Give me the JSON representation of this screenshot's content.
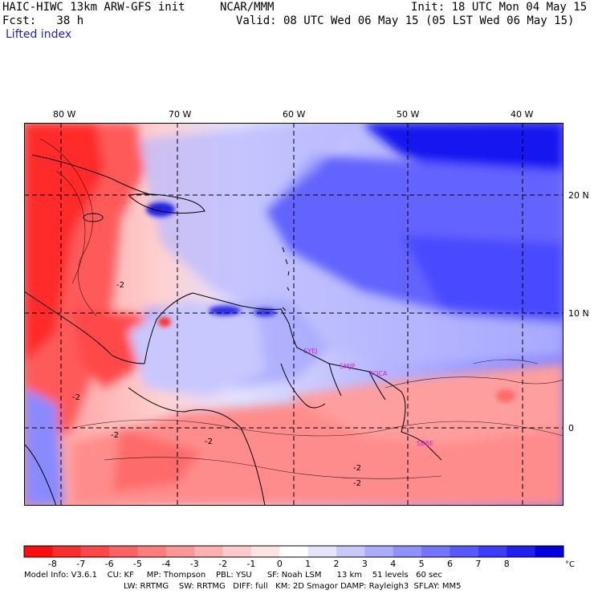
{
  "header": {
    "title": "HAIC-HIWC 13km ARW-GFS init",
    "org": "NCAR/MMM",
    "init": "Init: 18 UTC Mon 04 May 15",
    "fcst": "Fcst:   38 h",
    "valid": "Valid: 08 UTC Wed 06 May 15 (05 LST Wed 06 May 15)",
    "field": "Lifted index"
  },
  "map": {
    "lon_labels": [
      "80 W",
      "70 W",
      "60 W",
      "50 W",
      "40 W"
    ],
    "lat_labels": [
      "20 N",
      "10 N",
      "0"
    ],
    "contour_labels": [
      "-2",
      "-2",
      "-2",
      "-2",
      "-2",
      "-2"
    ],
    "stations": [
      "SYEJ",
      "SMJP",
      "SOCA",
      "SBBE"
    ],
    "station_color": "#d020d0"
  },
  "colorbar": {
    "ticks": [
      "-8",
      "-7",
      "-6",
      "-5",
      "-4",
      "-3",
      "-2",
      "-1",
      "0",
      "1",
      "2",
      "3",
      "4",
      "5",
      "6",
      "7",
      "8"
    ],
    "unit": "°C",
    "colors": [
      "#ff0d0d",
      "#ff2e2e",
      "#ff4848",
      "#ff6262",
      "#ff7c7c",
      "#ff9696",
      "#ffb0b0",
      "#ffcaca",
      "#ffe4e4",
      "#ffffff",
      "#e4e4ff",
      "#c8c8ff",
      "#acacff",
      "#9090ff",
      "#7474ff",
      "#5858ff",
      "#3c3cff",
      "#1f1ff0",
      "#0000e0"
    ]
  },
  "footer": {
    "line1": "Model Info: V3.6.1    CU: KF     MP: Thompson    PBL: YSU      SF: Noah LSM      13 km    51 levels   60 sec",
    "line2": "LW: RRTMG    SW: RRTMG   DIFF: full   KM: 2D Smagor DAMP: Rayleigh3  SFLAY: MM5"
  }
}
